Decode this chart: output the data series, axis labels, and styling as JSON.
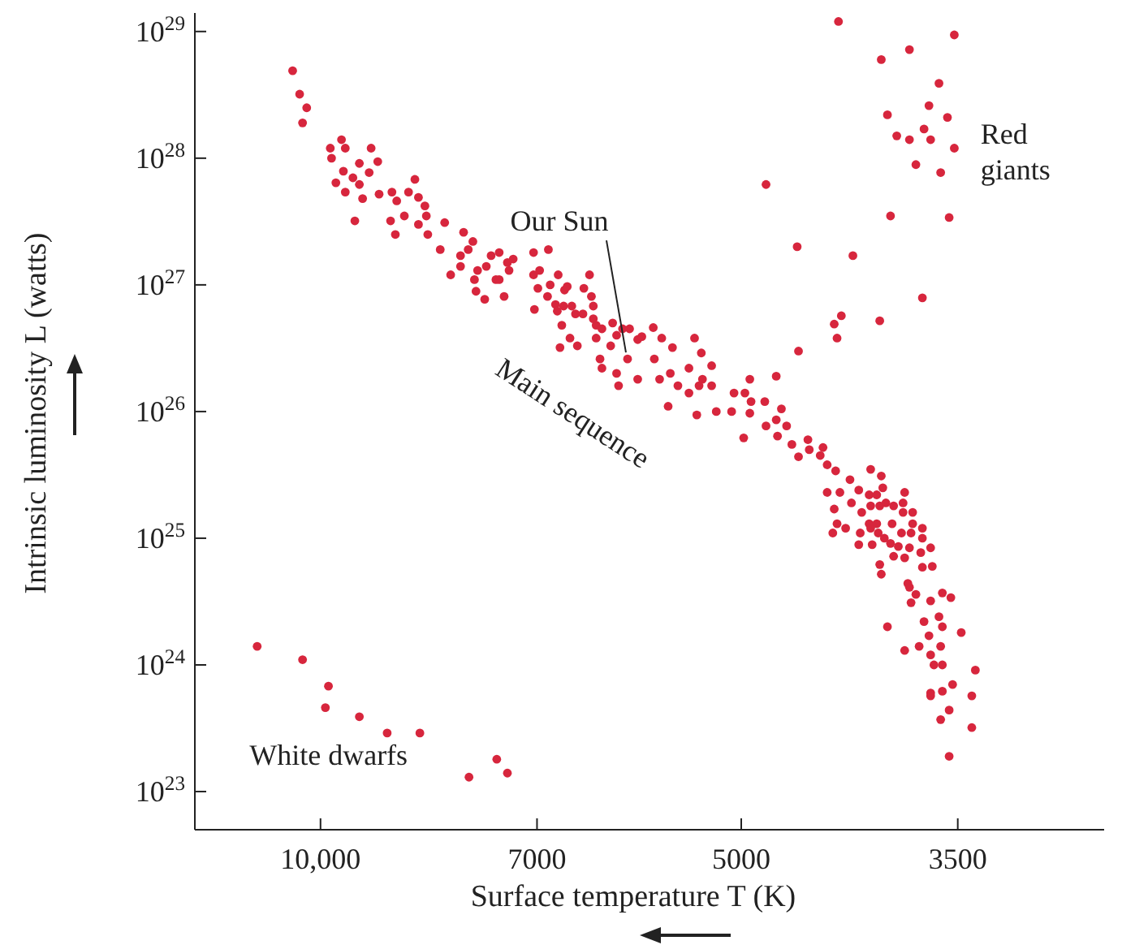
{
  "chart_data": {
    "type": "scatter",
    "xlabel": "Surface temperature T (K)",
    "ylabel": "Intrinsic luminosity L (watts)",
    "log": "xy",
    "marker": "circle",
    "xlim": [
      12300,
      2750
    ],
    "ylim": [
      5e+22,
      1.4e+29
    ],
    "xticks": [
      {
        "value": 10000,
        "label": "10,000"
      },
      7000,
      5000,
      3500
    ],
    "yticks": [
      {
        "value": 1e+23,
        "label": "10$^{23}$"
      },
      {
        "value": 1e+24,
        "label": "10$^{24}$"
      },
      {
        "value": 1e+25,
        "label": "10$^{25}$"
      },
      {
        "value": 1e+26,
        "label": "10$^{26}$"
      },
      {
        "value": 1e+27,
        "label": "10$^{27}$"
      },
      {
        "value": 1e+28,
        "label": "10$^{28}$"
      },
      {
        "value": 1e+29,
        "label": "10$^{29}$"
      }
    ],
    "annotations": [
      {
        "text": "Our Sun",
        "x": 6030,
        "y": 2.6e+26
      },
      "Main sequence",
      "Red giants",
      "White dwarfs"
    ],
    "x": [
      10470,
      10350,
      10230,
      10300,
      9660,
      9840,
      9600,
      9200,
      9820,
      9100,
      9380,
      9630,
      9230,
      9480,
      9750,
      9380,
      8560,
      9600,
      9080,
      8890,
      8650,
      9330,
      8820,
      8510,
      8420,
      8710,
      8400,
      9450,
      8910,
      8510,
      8150,
      8840,
      8380,
      7900,
      7780,
      8210,
      7840,
      7550,
      7450,
      7940,
      7280,
      7040,
      6870,
      7610,
      7350,
      7940,
      7720,
      7330,
      7040,
      6970,
      8070,
      7760,
      7490,
      7450,
      6760,
      6850,
      7740,
      6990,
      6690,
      6660,
      6480,
      6420,
      7630,
      7390,
      6880,
      6400,
      6790,
      6700,
      6610,
      7030,
      6380,
      6770,
      6570,
      6490,
      6380,
      6180,
      6350,
      6290,
      6720,
      6010,
      6080,
      5780,
      6140,
      5930,
      5890,
      5700,
      5400,
      6350,
      6630,
      6200,
      6550,
      6740,
      6030,
      5600,
      5340,
      6310,
      5770,
      6290,
      5250,
      5450,
      5620,
      6140,
      5330,
      5930,
      5720,
      6120,
      5550,
      5360,
      5250,
      5450,
      5060,
      4970,
      5640,
      5210,
      5080,
      5380,
      4930,
      4720,
      4920,
      4810,
      4930,
      4680,
      4720,
      4800,
      4640,
      4980,
      4710,
      4600,
      4480,
      4470,
      4550,
      4390,
      4370,
      4340,
      4280,
      4180,
      4340,
      4250,
      4120,
      4040,
      3970,
      3960,
      4050,
      4000,
      3820,
      4170,
      4040,
      3980,
      3940,
      3890,
      3830,
      3830,
      3770,
      4290,
      4100,
      4270,
      4210,
      4050,
      4040,
      4000,
      3900,
      3770,
      4300,
      4110,
      3990,
      3950,
      3840,
      3780,
      3710,
      3710,
      4120,
      4030,
      3910,
      3860,
      3790,
      3660,
      3890,
      3820,
      3720,
      3980,
      3970,
      3710,
      3650,
      3800,
      3790,
      3750,
      3780,
      3660,
      3590,
      3540,
      3700,
      3610,
      3590,
      3480,
      3930,
      3670,
      3730,
      3820,
      3600,
      3660,
      3640,
      3590,
      3400,
      3530,
      3660,
      3590,
      3660,
      3420,
      3550,
      3600,
      3420,
      3550,
      4260,
      3520,
      3790,
      3970,
      3610,
      3670,
      3930,
      3560,
      3700,
      3870,
      3790,
      3660,
      3520,
      3750,
      3600,
      4800,
      3910,
      3550,
      4560,
      4160,
      3710,
      4240,
      4290,
      3980,
      4270,
      4550,
      11100,
      10300,
      9870,
      9920,
      9380,
      8960,
      8490,
      7830,
      7480,
      7350
    ],
    "series": [
      {
        "color": "#d7263d",
        "values": [
          4.9e+28,
          3.2e+28,
          2.5e+28,
          1.9e+28,
          1.4e+28,
          1.2e+28,
          1.2e+28,
          1.2e+28,
          1e+28,
          9.4e+27,
          9.1e+27,
          7.9e+27,
          7.7e+27,
          7e+27,
          6.4e+27,
          6.2e+27,
          6.8e+27,
          5.4e+27,
          5.2e+27,
          5.4e+27,
          5.4e+27,
          4.8e+27,
          4.6e+27,
          4.9e+27,
          4.2e+27,
          3.5e+27,
          3.5e+27,
          3.2e+27,
          3.2e+27,
          3e+27,
          3.1e+27,
          2.5e+27,
          2.5e+27,
          2.6e+27,
          2.2e+27,
          1.9e+27,
          1.9e+27,
          1.7e+27,
          1.8e+27,
          1.7e+27,
          1.6e+27,
          1.8e+27,
          1.9e+27,
          1.4e+27,
          1.5e+27,
          1.4e+27,
          1.3e+27,
          1.3e+27,
          1.2e+27,
          1.3e+27,
          1.2e+27,
          1.1e+27,
          1.1e+27,
          1.1e+27,
          1.2e+27,
          1e+27,
          8.9e+26,
          9.4e+26,
          9.1e+26,
          9.7e+26,
          9.4e+26,
          1.2e+27,
          7.7e+26,
          8.1e+26,
          8.1e+26,
          8.1e+26,
          7e+26,
          6.8e+26,
          6.8e+26,
          6.4e+26,
          6.8e+26,
          6.2e+26,
          5.9e+26,
          5.9e+26,
          5.4e+26,
          5e+26,
          4.8e+26,
          4.5e+26,
          4.8e+26,
          4.5e+26,
          4.5e+26,
          4.6e+26,
          4e+26,
          3.7e+26,
          3.9e+26,
          3.8e+26,
          3.8e+26,
          3.8e+26,
          3.8e+26,
          3.3e+26,
          3.3e+26,
          3.2e+26,
          2.6e+26,
          3.2e+26,
          2.9e+26,
          2.6e+26,
          2.6e+26,
          2.2e+26,
          2.3e+26,
          2.2e+26,
          2e+26,
          2e+26,
          1.8e+26,
          1.8e+26,
          1.8e+26,
          1.6e+26,
          1.6e+26,
          1.6e+26,
          1.6e+26,
          1.4e+26,
          1.4e+26,
          1.4e+26,
          1.1e+26,
          1e+26,
          1e+26,
          9.4e+25,
          1.8e+26,
          1.9e+26,
          1.2e+26,
          1.2e+26,
          9.7e+25,
          1.05e+26,
          8.6e+25,
          7.7e+25,
          7.7e+25,
          6.2e+25,
          6.4e+25,
          5.5e+25,
          6e+25,
          5e+25,
          4.4e+25,
          4.5e+25,
          5.2e+25,
          3.8e+25,
          3.4e+25,
          2.9e+25,
          2.3e+25,
          2.3e+25,
          2.4e+25,
          3.5e+25,
          3.1e+25,
          2.5e+25,
          2.2e+25,
          2.2e+25,
          2.3e+25,
          1.9e+25,
          1.8e+25,
          1.8e+25,
          1.9e+25,
          1.8e+25,
          1.9e+25,
          1.6e+25,
          1.6e+25,
          1.7e+25,
          1.6e+25,
          1.3e+25,
          1.2e+25,
          1.3e+25,
          1.2e+25,
          1.3e+25,
          1.3e+25,
          1.3e+25,
          1.1e+25,
          1.1e+25,
          1.1e+25,
          1e+25,
          1.1e+25,
          1.1e+25,
          1.2e+25,
          1e+25,
          8.9e+24,
          8.9e+24,
          9.1e+24,
          8.6e+24,
          8.4e+24,
          8.4e+24,
          7.2e+24,
          7e+24,
          7.7e+24,
          6.2e+24,
          5.2e+24,
          5.9e+24,
          6e+24,
          4.4e+24,
          4.1e+24,
          3.6e+24,
          3.1e+24,
          3.2e+24,
          3.7e+24,
          3.4e+24,
          2.2e+24,
          2.4e+24,
          2e+24,
          1.8e+24,
          2e+24,
          1.7e+24,
          1.4e+24,
          1.3e+24,
          1.4e+24,
          1.2e+24,
          1e+24,
          1e+24,
          9.1e+23,
          7e+23,
          6e+23,
          6.2e+23,
          5.7e+23,
          5.7e+23,
          4.4e+23,
          3.7e+23,
          3.2e+23,
          1.9e+23,
          1.2e+29,
          9.4e+28,
          7.2e+28,
          6e+28,
          3.9e+28,
          2.6e+28,
          2.2e+28,
          2.1e+28,
          1.7e+28,
          1.5e+28,
          1.4e+28,
          1.4e+28,
          1.2e+28,
          8.9e+27,
          7.7e+27,
          6.2e+27,
          3.5e+27,
          3.4e+27,
          2e+27,
          1.7e+27,
          7.9e+26,
          5.7e+26,
          4.9e+26,
          5.2e+26,
          3.8e+26,
          3e+26,
          1.4e+24,
          1.1e+24,
          6.8e+23,
          4.6e+23,
          3.9e+23,
          2.9e+23,
          2.9e+23,
          1.3e+23,
          1.8e+23,
          1.4e+23
        ]
      }
    ]
  }
}
